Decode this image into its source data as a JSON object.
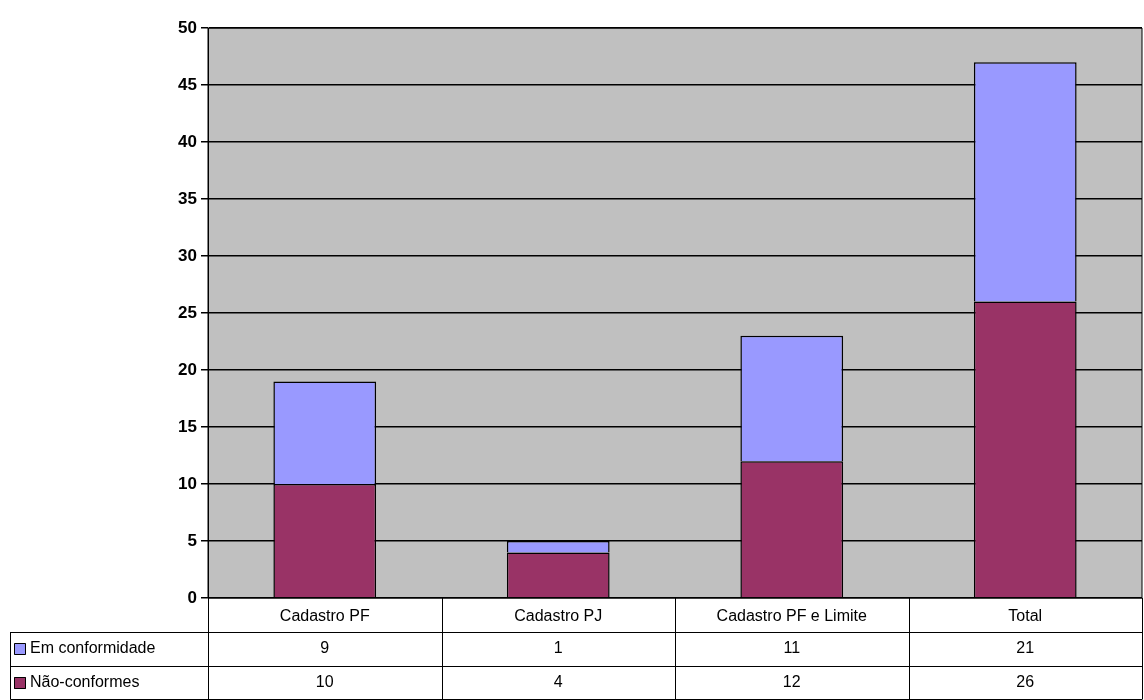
{
  "chart_data": {
    "type": "bar",
    "stacked": true,
    "categories": [
      "Cadastro PF",
      "Cadastro PJ",
      "Cadastro PF e Limite",
      "Total"
    ],
    "series": [
      {
        "name": "Não-conformes",
        "color": "#993366",
        "values": [
          10,
          4,
          12,
          26
        ]
      },
      {
        "name": "Em conformidade",
        "color": "#9999ff",
        "values": [
          9,
          1,
          11,
          21
        ]
      }
    ],
    "ylim": [
      0,
      50
    ],
    "yticks": [
      0,
      5,
      10,
      15,
      20,
      25,
      30,
      35,
      40,
      45,
      50
    ],
    "grid": "y",
    "legend": "bottom left",
    "data_labels": true
  }
}
